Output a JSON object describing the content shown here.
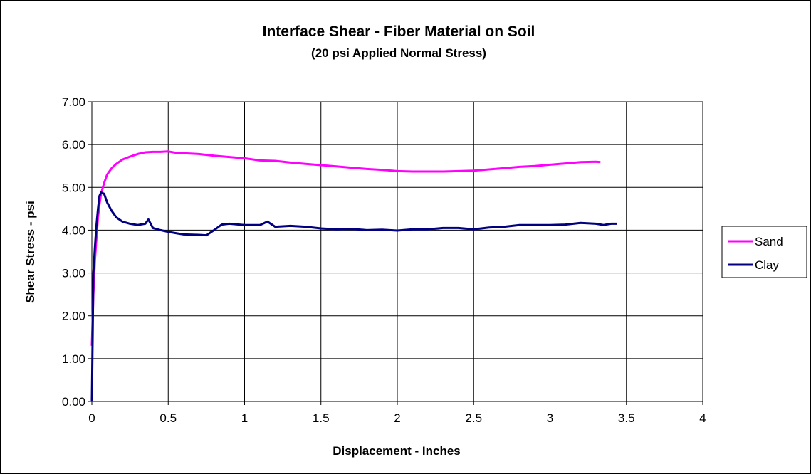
{
  "chart_data": {
    "type": "line",
    "title": "Interface Shear - Fiber Material on Soil",
    "subtitle": "(20 psi Applied Normal Stress)",
    "xlabel": "Displacement - Inches",
    "ylabel": "Shear Stress - psi",
    "xlim": [
      0,
      4
    ],
    "ylim": [
      0,
      7
    ],
    "xticks": [
      "0",
      "0.5",
      "1",
      "1.5",
      "2",
      "2.5",
      "3",
      "3.5",
      "4"
    ],
    "yticks": [
      "0.00",
      "1.00",
      "2.00",
      "3.00",
      "4.00",
      "5.00",
      "6.00",
      "7.00"
    ],
    "grid": true,
    "legend_position": "right",
    "series": [
      {
        "name": "Sand",
        "color": "#ff00ff",
        "points": [
          [
            0,
            1.3
          ],
          [
            0.01,
            2.5
          ],
          [
            0.02,
            3.3
          ],
          [
            0.03,
            3.8
          ],
          [
            0.04,
            4.3
          ],
          [
            0.05,
            4.6
          ],
          [
            0.06,
            4.85
          ],
          [
            0.08,
            5.1
          ],
          [
            0.1,
            5.3
          ],
          [
            0.13,
            5.45
          ],
          [
            0.16,
            5.55
          ],
          [
            0.2,
            5.65
          ],
          [
            0.25,
            5.72
          ],
          [
            0.3,
            5.78
          ],
          [
            0.35,
            5.82
          ],
          [
            0.4,
            5.83
          ],
          [
            0.45,
            5.83
          ],
          [
            0.5,
            5.84
          ],
          [
            0.55,
            5.81
          ],
          [
            0.6,
            5.8
          ],
          [
            0.7,
            5.78
          ],
          [
            0.8,
            5.74
          ],
          [
            0.9,
            5.71
          ],
          [
            1.0,
            5.68
          ],
          [
            1.1,
            5.63
          ],
          [
            1.2,
            5.62
          ],
          [
            1.3,
            5.58
          ],
          [
            1.4,
            5.55
          ],
          [
            1.5,
            5.52
          ],
          [
            1.6,
            5.49
          ],
          [
            1.7,
            5.46
          ],
          [
            1.8,
            5.43
          ],
          [
            1.9,
            5.41
          ],
          [
            2.0,
            5.38
          ],
          [
            2.1,
            5.37
          ],
          [
            2.2,
            5.37
          ],
          [
            2.3,
            5.37
          ],
          [
            2.4,
            5.38
          ],
          [
            2.5,
            5.39
          ],
          [
            2.6,
            5.42
          ],
          [
            2.7,
            5.45
          ],
          [
            2.8,
            5.48
          ],
          [
            2.9,
            5.5
          ],
          [
            3.0,
            5.53
          ],
          [
            3.1,
            5.56
          ],
          [
            3.2,
            5.59
          ],
          [
            3.3,
            5.6
          ],
          [
            3.33,
            5.59
          ]
        ]
      },
      {
        "name": "Clay",
        "color": "#000080",
        "points": [
          [
            0,
            0.0
          ],
          [
            0.005,
            1.5
          ],
          [
            0.01,
            3.0
          ],
          [
            0.02,
            3.6
          ],
          [
            0.03,
            4.1
          ],
          [
            0.04,
            4.5
          ],
          [
            0.05,
            4.8
          ],
          [
            0.06,
            4.88
          ],
          [
            0.08,
            4.85
          ],
          [
            0.1,
            4.65
          ],
          [
            0.13,
            4.45
          ],
          [
            0.16,
            4.3
          ],
          [
            0.2,
            4.2
          ],
          [
            0.25,
            4.15
          ],
          [
            0.3,
            4.12
          ],
          [
            0.35,
            4.15
          ],
          [
            0.37,
            4.25
          ],
          [
            0.4,
            4.05
          ],
          [
            0.45,
            4.0
          ],
          [
            0.5,
            3.96
          ],
          [
            0.55,
            3.93
          ],
          [
            0.6,
            3.9
          ],
          [
            0.7,
            3.89
          ],
          [
            0.75,
            3.88
          ],
          [
            0.8,
            4.0
          ],
          [
            0.85,
            4.13
          ],
          [
            0.9,
            4.15
          ],
          [
            1.0,
            4.12
          ],
          [
            1.1,
            4.12
          ],
          [
            1.15,
            4.2
          ],
          [
            1.2,
            4.08
          ],
          [
            1.3,
            4.1
          ],
          [
            1.4,
            4.08
          ],
          [
            1.5,
            4.04
          ],
          [
            1.6,
            4.02
          ],
          [
            1.7,
            4.03
          ],
          [
            1.8,
            4.0
          ],
          [
            1.9,
            4.01
          ],
          [
            2.0,
            3.99
          ],
          [
            2.1,
            4.02
          ],
          [
            2.2,
            4.02
          ],
          [
            2.3,
            4.05
          ],
          [
            2.4,
            4.05
          ],
          [
            2.5,
            4.02
          ],
          [
            2.6,
            4.06
          ],
          [
            2.7,
            4.08
          ],
          [
            2.8,
            4.12
          ],
          [
            2.9,
            4.12
          ],
          [
            3.0,
            4.12
          ],
          [
            3.1,
            4.13
          ],
          [
            3.2,
            4.17
          ],
          [
            3.3,
            4.15
          ],
          [
            3.35,
            4.12
          ],
          [
            3.4,
            4.15
          ],
          [
            3.44,
            4.15
          ]
        ]
      }
    ]
  }
}
